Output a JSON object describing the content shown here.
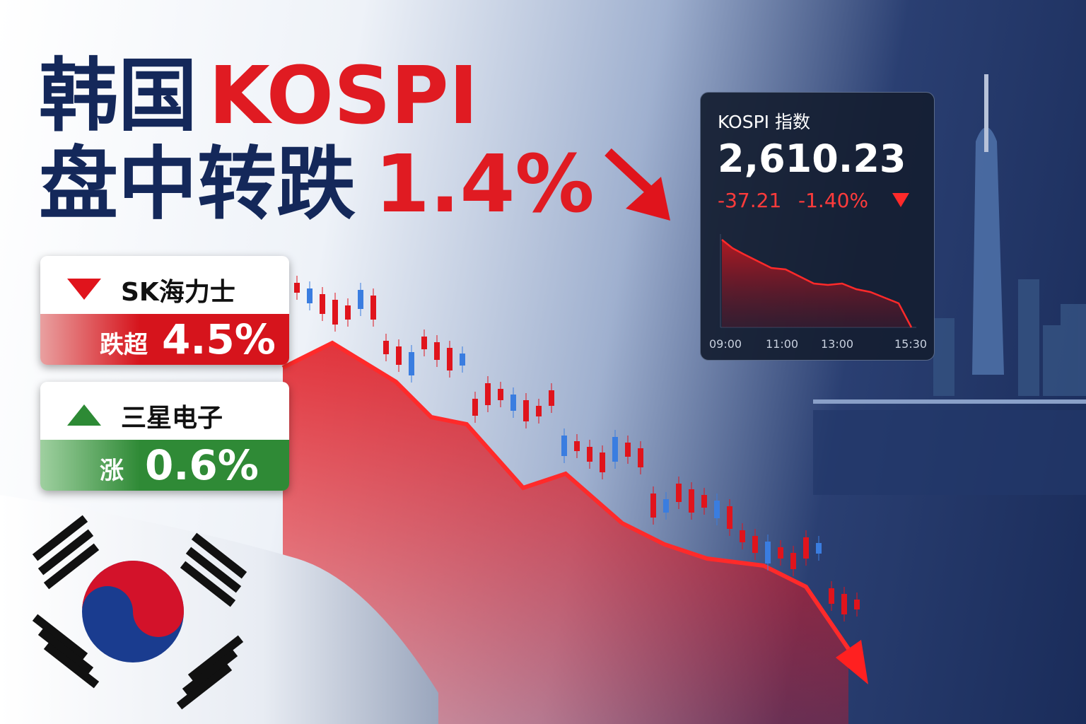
{
  "headline": {
    "line1_part1": "韩国",
    "line1_part2": "KOSPI",
    "line2_part1": "盘中转跌",
    "line2_part2": "1.4%"
  },
  "stocks": [
    {
      "name": "SK海力士",
      "label": "跌超",
      "change": "4.5%"
    },
    {
      "name": "三星电子",
      "label": "涨",
      "change": "0.6%"
    }
  ],
  "index_panel": {
    "title": "KOSPI 指数",
    "value": "2,610.23",
    "change": "-37.21",
    "change_pct": "-1.40%",
    "time_labels": [
      "09:00",
      "11:00",
      "13:00",
      "15:30"
    ]
  }
}
